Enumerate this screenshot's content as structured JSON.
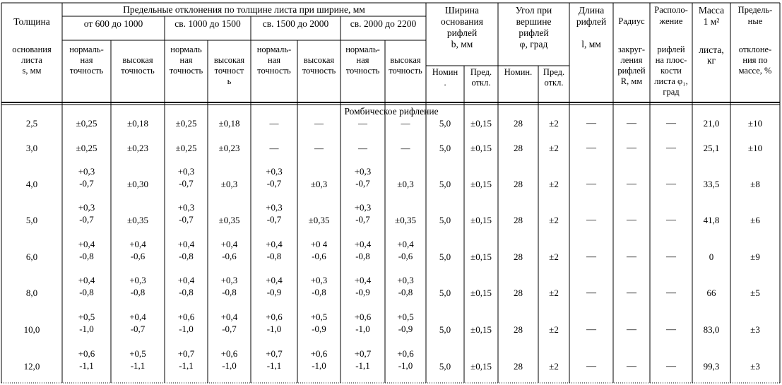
{
  "header": {
    "group_title": "Предельные отклонения по толщине листа при ширине, мм",
    "thickness_top": "Толщина",
    "thickness_sub": [
      "основания",
      "листа",
      "s, мм"
    ],
    "width_ranges": [
      "от 600  до 1000",
      "св. 1000  до 1500",
      "св. 1500  до 2000",
      "св. 2000  до 2200"
    ],
    "normal_label": [
      "нормаль-",
      "ная",
      "точность"
    ],
    "normal_label_alt": [
      "нормаль",
      "ная",
      "точность"
    ],
    "high_label": [
      "высокая",
      "точность"
    ],
    "high_label_alt": [
      "высокая",
      "точност",
      "ь"
    ],
    "width_col": [
      "Ширина",
      "основания",
      "рифлей",
      "b, мм"
    ],
    "width_nom": [
      "Номин",
      "."
    ],
    "width_dev": [
      "Пред.",
      "откл."
    ],
    "angle_col": [
      "Угол при",
      "вершине",
      "рифлей",
      "φ, град"
    ],
    "angle_nom": [
      "Номин."
    ],
    "angle_dev": [
      "Пред.",
      "откл."
    ],
    "length_col": [
      "Длина",
      "рифлей",
      "",
      "l, мм"
    ],
    "radius_col": [
      "Радиус",
      "закруг-",
      "ления",
      "рифлей",
      "R, мм"
    ],
    "position_col": [
      "Располо-",
      "жение",
      "рифлей",
      "на плос-",
      "кости",
      "листа φ₁,",
      "град"
    ],
    "mass_col": [
      "Масса",
      "1 м²",
      "листа,",
      "кг"
    ],
    "limit_col": [
      "Предель-",
      "ные",
      "отклоне-",
      "ния по",
      "массе, %"
    ]
  },
  "section_title": "Ромбическое рифление",
  "rows": [
    {
      "s": "2,5",
      "cells": [
        [
          "±0,25"
        ],
        [
          "±0,18"
        ],
        [
          "±0,25"
        ],
        [
          "±0,18"
        ],
        [
          "—"
        ],
        [
          "—"
        ],
        [
          "—"
        ],
        [
          "—"
        ]
      ],
      "b_nom": "5,0",
      "b_dev": "±0,15",
      "phi_nom": "28",
      "phi_dev": "±2",
      "l": "—",
      "r": "—",
      "pos": "—",
      "mass": "21,0",
      "limit": "±10"
    },
    {
      "s": "3,0",
      "cells": [
        [
          "±0,25"
        ],
        [
          "±0,23"
        ],
        [
          "±0,25"
        ],
        [
          "±0,23"
        ],
        [
          "—"
        ],
        [
          "—"
        ],
        [
          "—"
        ],
        [
          "—"
        ]
      ],
      "b_nom": "5,0",
      "b_dev": "±0,15",
      "phi_nom": "28",
      "phi_dev": "±2",
      "l": "—",
      "r": "—",
      "pos": "—",
      "mass": "25,1",
      "limit": "±10"
    },
    {
      "s": "4,0",
      "cells": [
        [
          "+0,3",
          "-0,7"
        ],
        [
          "±0,30"
        ],
        [
          "+0,3",
          "-0,7"
        ],
        [
          "±0,3"
        ],
        [
          "+0,3",
          "-0,7"
        ],
        [
          "±0,3"
        ],
        [
          "+0,3",
          "-0,7"
        ],
        [
          "±0,3"
        ]
      ],
      "b_nom": "5,0",
      "b_dev": "±0,15",
      "phi_nom": "28",
      "phi_dev": "±2",
      "l": "—",
      "r": "—",
      "pos": "—",
      "mass": "33,5",
      "limit": "±8"
    },
    {
      "s": "5,0",
      "cells": [
        [
          "+0,3",
          "-0,7"
        ],
        [
          "±0,35"
        ],
        [
          "+0,3",
          "-0,7"
        ],
        [
          "±0,35"
        ],
        [
          "+0,3",
          "-0,7"
        ],
        [
          "±0,35"
        ],
        [
          "+0,3",
          "-0,7"
        ],
        [
          "±0,35"
        ]
      ],
      "b_nom": "5,0",
      "b_dev": "±0,15",
      "phi_nom": "28",
      "phi_dev": "±2",
      "l": "—",
      "r": "—",
      "pos": "—",
      "mass": "41,8",
      "limit": "±6"
    },
    {
      "s": "6,0",
      "cells": [
        [
          "+0,4",
          "-0,8"
        ],
        [
          "+0,4",
          "-0,6"
        ],
        [
          "+0,4",
          "-0,8"
        ],
        [
          "+0,4",
          "-0,6"
        ],
        [
          "+0,4",
          "-0,8"
        ],
        [
          "+0 4",
          "-0,6"
        ],
        [
          "+0,4",
          "-0,8"
        ],
        [
          "+0,4",
          "-0,6"
        ]
      ],
      "b_nom": "5,0",
      "b_dev": "±0,15",
      "phi_nom": "28",
      "phi_dev": "±2",
      "l": "—",
      "r": "—",
      "pos": "—",
      "mass": "0",
      "limit": "±9"
    },
    {
      "s": "8,0",
      "cells": [
        [
          "+0,4",
          "-0,8"
        ],
        [
          "+0,3",
          "-0,8"
        ],
        [
          "+0,4",
          "-0,8"
        ],
        [
          "+0,3",
          "-0,8"
        ],
        [
          "+0,4",
          "-0,9"
        ],
        [
          "+0,3",
          "-0,8"
        ],
        [
          "+0,4",
          "-0,9"
        ],
        [
          "+0,3",
          "-0,8"
        ]
      ],
      "b_nom": "5,0",
      "b_dev": "±0,15",
      "phi_nom": "28",
      "phi_dev": "±2",
      "l": "—",
      "r": "—",
      "pos": "—",
      "mass": "66",
      "limit": "±5"
    },
    {
      "s": "10,0",
      "cells": [
        [
          "+0,5",
          "-1,0"
        ],
        [
          "+0,4",
          "-0,7"
        ],
        [
          "+0,6",
          "-1,0"
        ],
        [
          "+0,4",
          "-0,7"
        ],
        [
          "+0,6",
          "-1,0"
        ],
        [
          "+0,5",
          "-0,9"
        ],
        [
          "+0,6",
          "-1,0"
        ],
        [
          "+0,5",
          "-0,9"
        ]
      ],
      "b_nom": "5,0",
      "b_dev": "±0,15",
      "phi_nom": "28",
      "phi_dev": "±2",
      "l": "—",
      "r": "—",
      "pos": "—",
      "mass": "83,0",
      "limit": "±3"
    },
    {
      "s": "12,0",
      "cells": [
        [
          "+0,6",
          "-1,1"
        ],
        [
          "+0,5",
          "-1,1"
        ],
        [
          "+0,7",
          "-1,1"
        ],
        [
          "+0,6",
          "-1,0"
        ],
        [
          "+0,7",
          "-1,1"
        ],
        [
          "+0,6",
          "-1,0"
        ],
        [
          "+0,7",
          "-1,1"
        ],
        [
          "+0,6",
          "-1,0"
        ]
      ],
      "b_nom": "5,0",
      "b_dev": "±0,15",
      "phi_nom": "28",
      "phi_dev": "±2",
      "l": "—",
      "r": "—",
      "pos": "—",
      "mass": "99,3",
      "limit": "±3"
    }
  ]
}
